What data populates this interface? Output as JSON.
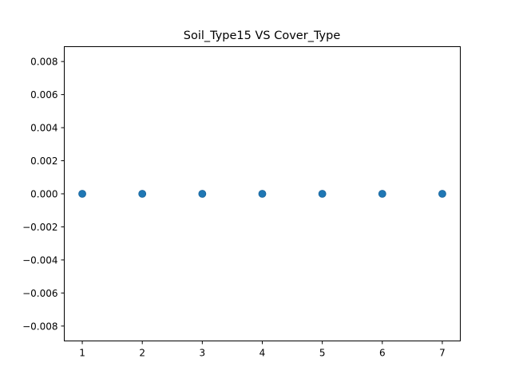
{
  "chart_data": {
    "type": "scatter",
    "title": "Soil_Type15 VS Cover_Type",
    "xlabel": "",
    "ylabel": "",
    "xlim": [
      0.7,
      7.3
    ],
    "ylim": [
      -0.0089,
      0.0089
    ],
    "xticks": [
      1,
      2,
      3,
      4,
      5,
      6,
      7
    ],
    "xtick_labels": [
      "1",
      "2",
      "3",
      "4",
      "5",
      "6",
      "7"
    ],
    "yticks": [
      -0.008,
      -0.006,
      -0.004,
      -0.002,
      0.0,
      0.002,
      0.004,
      0.006,
      0.008
    ],
    "ytick_labels": [
      "−0.008",
      "−0.006",
      "−0.004",
      "−0.002",
      "0.000",
      "0.002",
      "0.004",
      "0.006",
      "0.008"
    ],
    "grid": false,
    "marker_color": "#1f77b4",
    "points": [
      {
        "x": 1,
        "y": 0
      },
      {
        "x": 2,
        "y": 0
      },
      {
        "x": 3,
        "y": 0
      },
      {
        "x": 4,
        "y": 0
      },
      {
        "x": 5,
        "y": 0
      },
      {
        "x": 6,
        "y": 0
      },
      {
        "x": 7,
        "y": 0
      }
    ]
  }
}
